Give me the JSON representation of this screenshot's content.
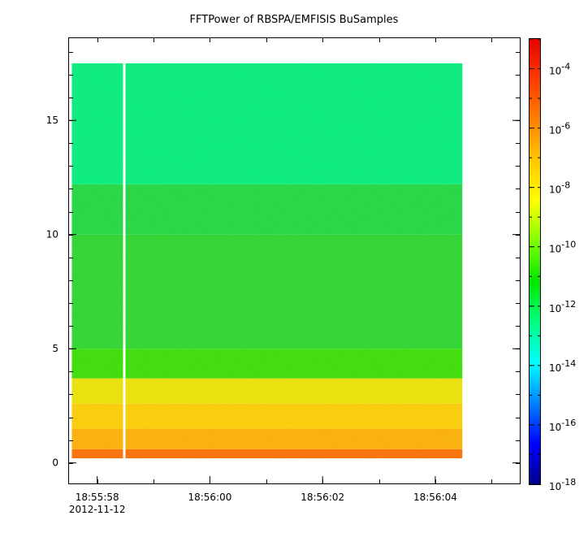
{
  "chart_data": {
    "type": "heatmap",
    "title": "FFTPower of RBSPA/EMFISIS  BuSamples",
    "xlabel": "",
    "ylabel": "",
    "x_ticks": [
      "18:55:58",
      "18:56:00",
      "18:56:02",
      "18:56:04"
    ],
    "x_date_label": "2012-11-12",
    "xlim_seconds_after_18_55_58": [
      -0.5,
      7.5
    ],
    "data_extent_seconds_after_18_55_58": [
      -0.45,
      6.48
    ],
    "gap_seconds_after_18_55_58": 0.48,
    "y_ticks": [
      0,
      5,
      10,
      15
    ],
    "ylim": [
      -0.9,
      18.6
    ],
    "bands": [
      {
        "y_range": [
          0.2,
          0.6
        ],
        "log10_power": -6.7,
        "color": "#ff6e00"
      },
      {
        "y_range": [
          0.6,
          1.5
        ],
        "log10_power": -7.3,
        "color": "#ffb100"
      },
      {
        "y_range": [
          1.5,
          2.6
        ],
        "log10_power": -7.7,
        "color": "#ffd000"
      },
      {
        "y_range": [
          2.6,
          3.7
        ],
        "log10_power": -8.2,
        "color": "#f0e400"
      },
      {
        "y_range": [
          3.7,
          5.0
        ],
        "log10_power": -10.0,
        "color": "#38e000"
      },
      {
        "y_range": [
          5.0,
          10.0
        ],
        "log10_power": -10.3,
        "color": "#29d82a"
      },
      {
        "y_range": [
          10.0,
          12.2
        ],
        "log10_power": -10.6,
        "color": "#1ed93d"
      },
      {
        "y_range": [
          12.2,
          17.5
        ],
        "log10_power": -12.3,
        "color": "#00f07a"
      }
    ],
    "colorbar": {
      "label": "",
      "scale": "log",
      "range": [
        1e-18,
        0.001
      ],
      "tick_bases": [
        "10",
        "10",
        "10",
        "10",
        "10",
        "10",
        "10",
        "10"
      ],
      "tick_exponents": [
        "-4",
        "-6",
        "-8",
        "-10",
        "-12",
        "-14",
        "-16",
        "-18"
      ],
      "colors": [
        "#00008b",
        "#0000ff",
        "#0080ff",
        "#00ffff",
        "#00ff80",
        "#00e600",
        "#80ff00",
        "#ffff00",
        "#ffc800",
        "#ff8000",
        "#ff3c00",
        "#e60000"
      ]
    }
  }
}
